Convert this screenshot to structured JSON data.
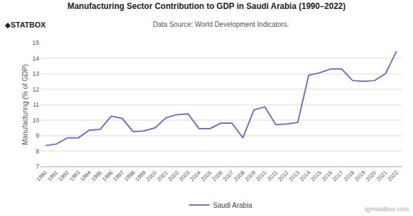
{
  "chart_data": {
    "type": "line",
    "title": "Manufacturing Sector Contribution to GDP in Saudi Arabia (1990–2022)",
    "subtitle": "Data Source: World Development Indicators.",
    "ylabel": "Manufacturing (% of GDP)",
    "annotations": [
      "◆STATBOX",
      "tgmstatbox.com"
    ],
    "x": [
      1990,
      1991,
      1992,
      1993,
      1994,
      1995,
      1996,
      1997,
      1998,
      1999,
      2000,
      2001,
      2002,
      2003,
      2004,
      2005,
      2006,
      2007,
      2008,
      2009,
      2010,
      2011,
      2012,
      2013,
      2014,
      2015,
      2016,
      2017,
      2018,
      2019,
      2020,
      2021,
      2022
    ],
    "series": [
      {
        "name": "Saudi Arabia",
        "color": "#7B68C8",
        "values": [
          8.35,
          8.45,
          8.85,
          8.85,
          9.35,
          9.4,
          10.25,
          10.1,
          9.25,
          9.3,
          9.5,
          10.15,
          10.35,
          10.4,
          9.45,
          9.45,
          9.8,
          9.8,
          8.85,
          10.65,
          10.85,
          9.7,
          9.75,
          9.85,
          12.9,
          13.05,
          13.3,
          13.3,
          12.55,
          12.5,
          12.55,
          13.0,
          14.45
        ]
      }
    ],
    "xlim": [
      1989.5,
      2022.5
    ],
    "xticks": [
      1990,
      1991,
      1992,
      1993,
      1994,
      1995,
      1996,
      1997,
      1998,
      1999,
      2000,
      2001,
      2002,
      2003,
      2004,
      2005,
      2006,
      2007,
      2008,
      2009,
      2010,
      2011,
      2012,
      2013,
      2014,
      2015,
      2016,
      2017,
      2018,
      2019,
      2020,
      2021,
      2022
    ],
    "ylim": [
      7,
      15
    ],
    "yticks": [
      7,
      8,
      9,
      10,
      11,
      12,
      13,
      14,
      15
    ],
    "grid": true,
    "legend": "bottom"
  }
}
